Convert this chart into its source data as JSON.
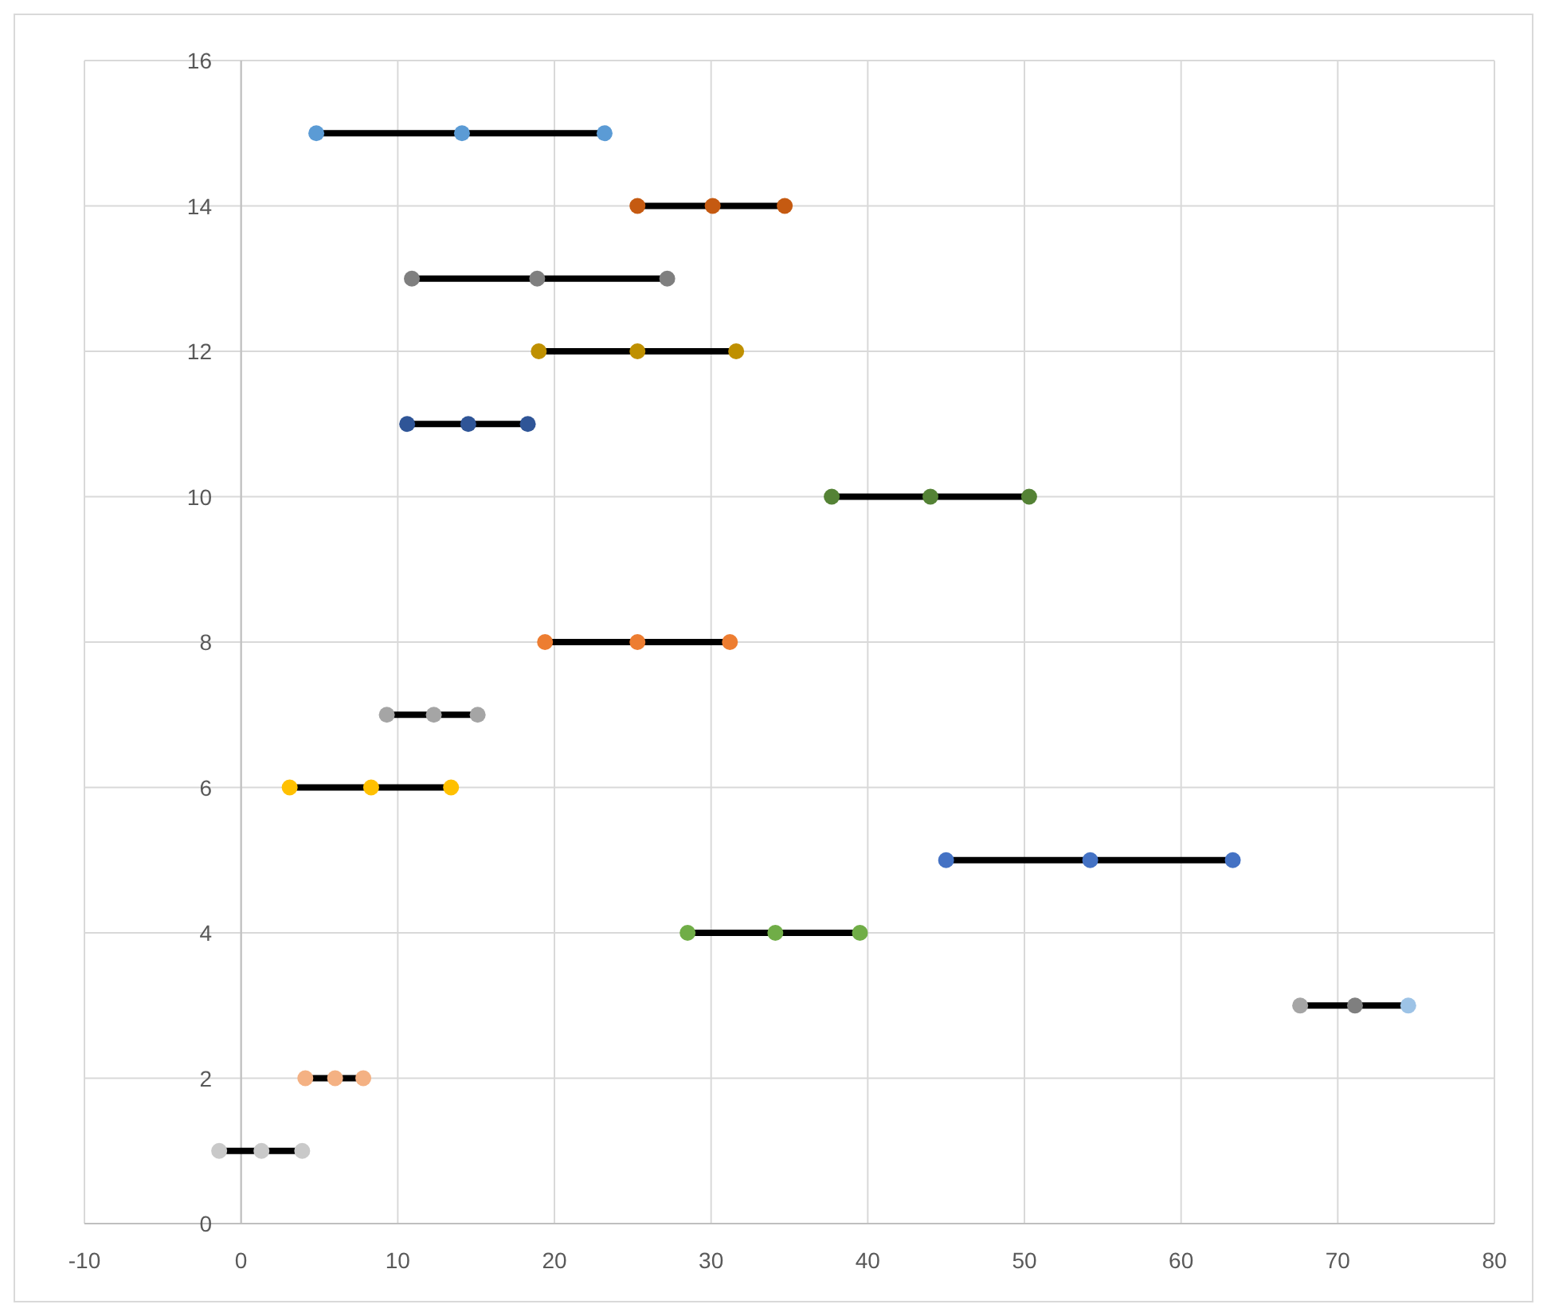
{
  "chart_data": {
    "type": "scatter",
    "xlim": [
      -10,
      80
    ],
    "xticks": [
      -10,
      0,
      10,
      20,
      30,
      40,
      50,
      60,
      70,
      80
    ],
    "ylim": [
      0,
      16
    ],
    "yticks": [
      0,
      2,
      4,
      6,
      8,
      10,
      12,
      14,
      16
    ],
    "grid": true,
    "line_style": "solid",
    "marker": "circle",
    "series": [
      {
        "type": "line",
        "marker": "none",
        "color": "#000000",
        "x": [
          4.8,
          14.1,
          23.2
        ],
        "values": [
          15,
          15,
          15
        ]
      },
      {
        "type": "line",
        "marker": "none",
        "color": "#000000",
        "x": [
          25.3,
          30.1,
          34.7
        ],
        "values": [
          14,
          14,
          14
        ]
      },
      {
        "type": "line",
        "marker": "none",
        "color": "#000000",
        "x": [
          10.9,
          18.9,
          27.2
        ],
        "values": [
          13,
          13,
          13
        ]
      },
      {
        "type": "line",
        "marker": "none",
        "color": "#000000",
        "x": [
          19.0,
          25.3,
          31.6
        ],
        "values": [
          12,
          12,
          12
        ]
      },
      {
        "type": "line",
        "marker": "none",
        "color": "#000000",
        "x": [
          10.6,
          14.5,
          18.3
        ],
        "values": [
          11,
          11,
          11
        ]
      },
      {
        "type": "line",
        "marker": "none",
        "color": "#000000",
        "x": [
          37.7,
          44.0,
          50.3
        ],
        "values": [
          10,
          10,
          10
        ]
      },
      {
        "type": "line",
        "marker": "none",
        "color": "#000000",
        "x": [
          19.4,
          25.3,
          31.2
        ],
        "values": [
          8,
          8,
          8
        ]
      },
      {
        "type": "line",
        "marker": "none",
        "color": "#000000",
        "x": [
          9.3,
          12.3,
          15.1
        ],
        "values": [
          7,
          7,
          7
        ]
      },
      {
        "type": "line",
        "marker": "none",
        "color": "#000000",
        "x": [
          3.1,
          8.3,
          13.4
        ],
        "values": [
          6,
          6,
          6
        ]
      },
      {
        "type": "line",
        "marker": "none",
        "color": "#000000",
        "x": [
          45.0,
          54.2,
          63.3
        ],
        "values": [
          5,
          5,
          5
        ]
      },
      {
        "type": "line",
        "marker": "none",
        "color": "#000000",
        "x": [
          28.5,
          34.1,
          39.5
        ],
        "values": [
          4,
          4,
          4
        ]
      },
      {
        "type": "line",
        "marker": "none",
        "color": "#000000",
        "x": [
          67.6,
          71.1,
          74.5
        ],
        "values": [
          3,
          3,
          3
        ]
      },
      {
        "type": "line",
        "marker": "none",
        "color": "#000000",
        "x": [
          4.1,
          6.0,
          7.8
        ],
        "values": [
          2,
          2,
          2
        ]
      },
      {
        "type": "line",
        "marker": "none",
        "color": "#000000",
        "x": [
          -1.4,
          1.3,
          3.9
        ],
        "values": [
          1,
          1,
          1
        ]
      },
      {
        "x": [
          4.8,
          14.1,
          23.2,
          25.3,
          30.1,
          34.7,
          10.9,
          18.9,
          27.2,
          19.0,
          25.3,
          31.6,
          10.6,
          14.5,
          18.3,
          37.7,
          44.0,
          50.3,
          19.4,
          25.3,
          31.2,
          9.3,
          12.3,
          15.1,
          3.1,
          8.3,
          13.4,
          45.0,
          54.2,
          63.3,
          28.5,
          34.1,
          39.5,
          67.6,
          71.1,
          74.5,
          4.1,
          6.0,
          7.8,
          -1.4,
          1.3,
          3.9
        ],
        "values": [
          15,
          15,
          15,
          14,
          14,
          14,
          13,
          13,
          13,
          12,
          12,
          12,
          11,
          11,
          11,
          10,
          10,
          10,
          8,
          8,
          8,
          7,
          7,
          7,
          6,
          6,
          6,
          5,
          5,
          5,
          4,
          4,
          4,
          3,
          3,
          3,
          2,
          2,
          2,
          1,
          1,
          1
        ],
        "colors": [
          "#5b9bd5",
          "#5b9bd5",
          "#5b9bd5",
          "#c55a11",
          "#c55a11",
          "#c55a11",
          "#7f7f7f",
          "#7f7f7f",
          "#7f7f7f",
          "#bf9000",
          "#bf9000",
          "#bf9000",
          "#2f5597",
          "#2f5597",
          "#2f5597",
          "#548235",
          "#548235",
          "#548235",
          "#ed7d31",
          "#ed7d31",
          "#ed7d31",
          "#a5a5a5",
          "#a5a5a5",
          "#a5a5a5",
          "#ffc000",
          "#ffc000",
          "#ffc000",
          "#4472c4",
          "#4472c4",
          "#4472c4",
          "#70ad47",
          "#70ad47",
          "#70ad47",
          "#a5a5a5",
          "#7f7f7f",
          "#9dc3e6",
          "#f4b183",
          "#f4b183",
          "#f4b183",
          "#c9c9c9",
          "#c9c9c9",
          "#c9c9c9"
        ]
      }
    ]
  }
}
